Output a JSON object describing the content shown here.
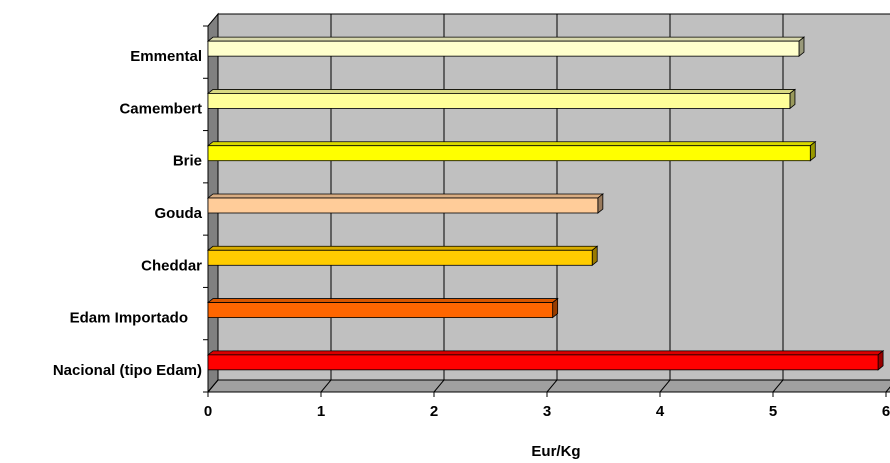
{
  "chart_data": {
    "type": "bar3d_horizontal",
    "x_label": "Eur/Kg",
    "categories": [
      "Emmental",
      "Camembert",
      "Brie",
      "Gouda",
      "Cheddar",
      "Edam Importado",
      "Nacional (tipo Edam)"
    ],
    "values": [
      5.23,
      5.15,
      5.33,
      3.45,
      3.4,
      3.05,
      5.93
    ],
    "colors": [
      "#FFFFCC",
      "#FFFF99",
      "#FFFF00",
      "#FFCC99",
      "#FFCC00",
      "#FF6600",
      "#FF0000"
    ],
    "xlim": [
      0,
      6
    ],
    "xticks": [
      0,
      1,
      2,
      3,
      4,
      5,
      6
    ],
    "grid": true
  }
}
